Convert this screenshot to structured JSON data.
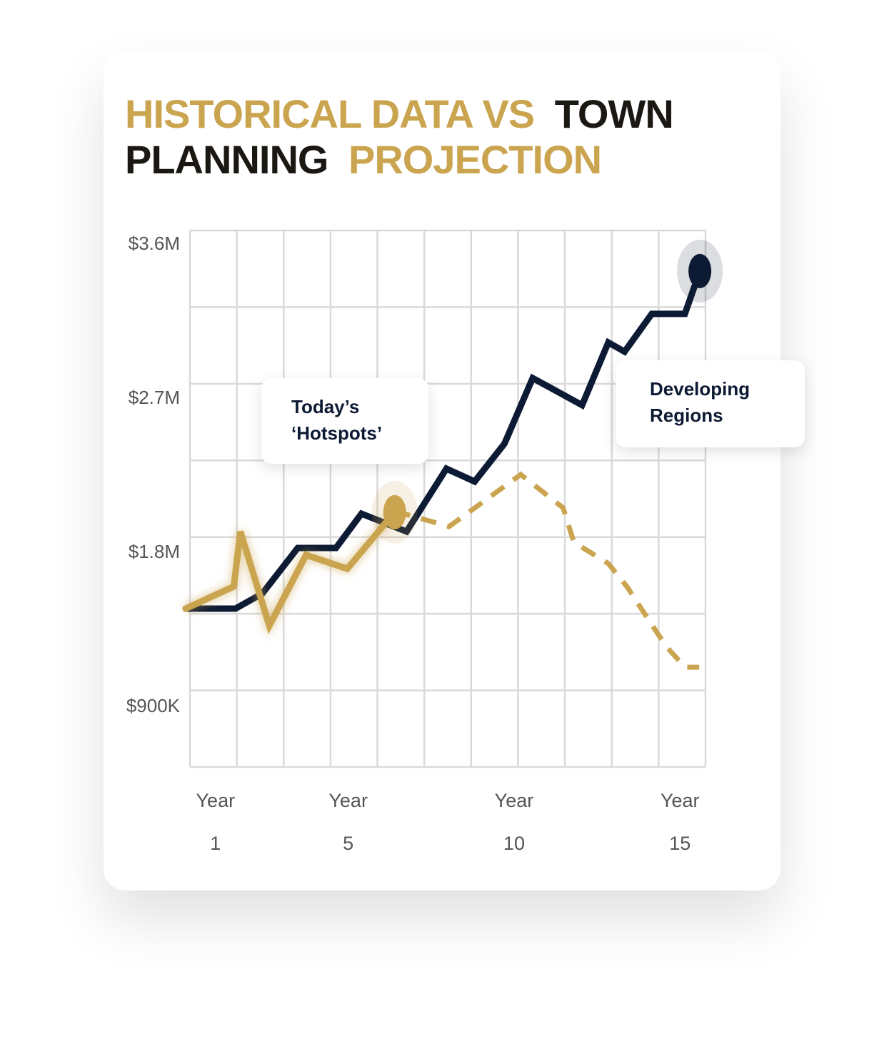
{
  "chart_data": {
    "type": "line",
    "title": [
      {
        "text": "HISTORICAL DATA VS",
        "color": "#cba44f"
      },
      {
        "text": "TOWN",
        "color": "#1b1712"
      },
      {
        "text": "PLANNING",
        "color": "#1b1712"
      },
      {
        "text": "PROJECTION",
        "color": "#cba44f"
      }
    ],
    "xlim": [
      0.1,
      15.64
    ],
    "xticks": [
      {
        "value": 1,
        "label": "Year 1"
      },
      {
        "value": 5,
        "label": "Year 5"
      },
      {
        "value": 10,
        "label": "Year 10"
      },
      {
        "value": 15,
        "label": "Year 15"
      }
    ],
    "ylim": [
      550000,
      3683000
    ],
    "yticks": [
      {
        "value": 900000,
        "label": "$900K"
      },
      {
        "value": 1800000,
        "label": "$1.8M"
      },
      {
        "value": 2700000,
        "label": "$2.7M"
      },
      {
        "value": 3600000,
        "label": "$3.6M"
      }
    ],
    "series": [
      {
        "color": "#0d1a33",
        "style": "solid",
        "end_dot": true,
        "x": [
          0.1,
          1.6,
          2.41,
          3.48,
          4.63,
          5.4,
          6.76,
          7.96,
          8.81,
          9.71,
          10.56,
          12.05,
          12.84,
          13.33,
          14.15,
          15.15,
          15.6
        ],
        "values": [
          1475000,
          1475000,
          1563000,
          1829000,
          1829000,
          2029000,
          1925000,
          2292000,
          2217000,
          2438000,
          2821000,
          2663000,
          3029000,
          2975000,
          3196000,
          3196000,
          3446000
        ]
      },
      {
        "color": "#cba44f",
        "style": "solid",
        "end_dot": true,
        "x": [
          0.1,
          1.55,
          1.75,
          2.62,
          3.73,
          4.97,
          6.4
        ],
        "values": [
          1475000,
          1604000,
          1925000,
          1375000,
          1788000,
          1708000,
          2038000
        ]
      },
      {
        "color": "#cba44f",
        "style": "dashed",
        "end_dot": false,
        "x": [
          6.4,
          6.83,
          8.04,
          10.2,
          11.48,
          11.8,
          12.84,
          13.4,
          13.93,
          14.57,
          15.15,
          15.58
        ],
        "values": [
          2038000,
          2021000,
          1954000,
          2258000,
          2063000,
          1863000,
          1738000,
          1604000,
          1446000,
          1258000,
          1133000,
          1133000
        ]
      }
    ],
    "annotations": [
      {
        "text": "Today’s ‘Hotspots’"
      },
      {
        "text": "Developing Regions"
      }
    ]
  }
}
